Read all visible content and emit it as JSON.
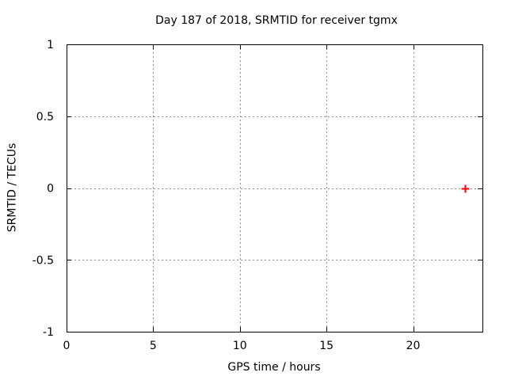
{
  "chart_data": {
    "type": "scatter",
    "title": "Day 187 of 2018, SRMTID for receiver tgmx",
    "xlabel": "GPS time / hours",
    "ylabel": "SRMTID / TECUs",
    "xlim": [
      0,
      24
    ],
    "ylim": [
      -1,
      1
    ],
    "xticks": {
      "values": [
        0,
        5,
        10,
        15,
        20
      ],
      "labels": [
        "0",
        "5",
        "10",
        "15",
        "20"
      ]
    },
    "yticks": {
      "values": [
        -1,
        -0.5,
        0,
        0.5,
        1
      ],
      "labels": [
        "-1",
        "-0.5",
        "0",
        "0.5",
        "1"
      ]
    },
    "grid": true,
    "grid_style": "dashed",
    "legend": "none",
    "series": [
      {
        "name": "SRMTID",
        "marker": "plus",
        "color": "#ff0000",
        "points": [
          {
            "x": 23,
            "y": 0
          }
        ]
      }
    ]
  },
  "style": {
    "background_color": "#ffffff",
    "border_color": "#000000",
    "grid_color": "#909090",
    "text_color": "#000000"
  }
}
